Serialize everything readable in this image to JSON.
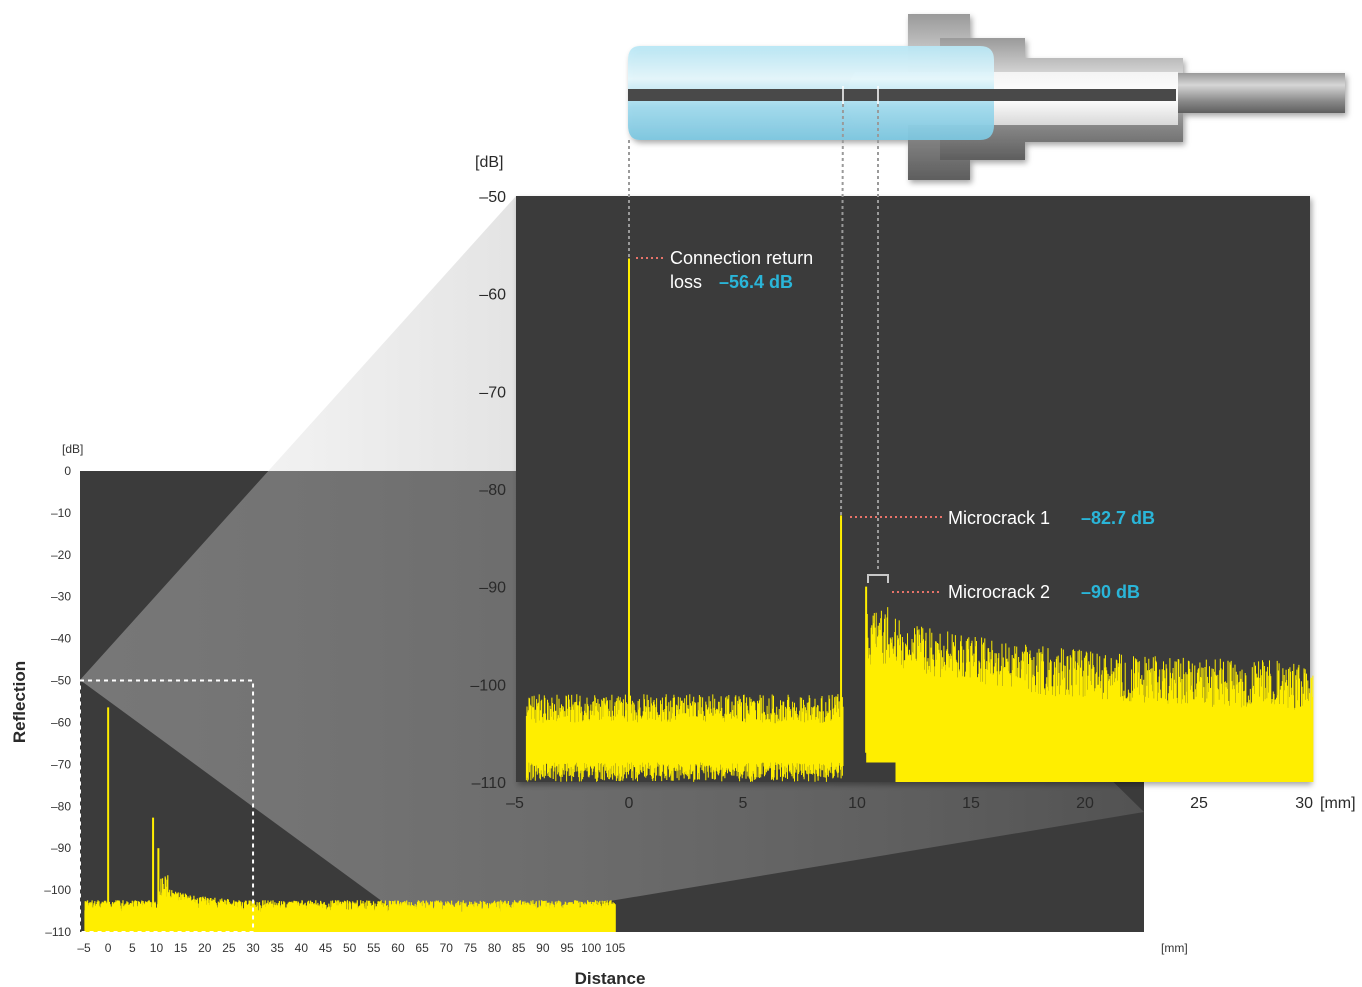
{
  "chart_data": [
    {
      "type": "line",
      "panel": "overview",
      "xlabel": "Distance",
      "ylabel": "Reflection",
      "x_unit": "[mm]",
      "y_unit": "[dB]",
      "xlim": [
        -5,
        105
      ],
      "ylim": [
        -110,
        0
      ],
      "x_ticks": [
        -5,
        0,
        5,
        10,
        15,
        20,
        25,
        30,
        35,
        40,
        45,
        50,
        55,
        60,
        65,
        70,
        75,
        80,
        85,
        90,
        95,
        100,
        105
      ],
      "y_ticks": [
        0,
        -10,
        -20,
        -30,
        -40,
        -50,
        -60,
        -70,
        -80,
        -90,
        -100,
        -110
      ],
      "series": [
        {
          "color": "#ffee00",
          "noise_floor_db": -105,
          "peaks": [
            {
              "x": 0,
              "y": -56.4
            },
            {
              "x": 9.3,
              "y": -82.7
            },
            {
              "x": 10.4,
              "y": -90
            }
          ]
        }
      ],
      "zoom_region": {
        "x": [
          -5,
          30
        ],
        "y": [
          -110,
          -50
        ]
      }
    },
    {
      "type": "line",
      "panel": "zoom",
      "x_unit": "[mm]",
      "y_unit": "[dB]",
      "xlim": [
        -5,
        30
      ],
      "ylim": [
        -110,
        -50
      ],
      "x_ticks": [
        -5,
        0,
        5,
        10,
        15,
        20,
        25,
        30
      ],
      "y_ticks": [
        -50,
        -60,
        -70,
        -80,
        -90,
        -100,
        -110
      ],
      "series": [
        {
          "color": "#ffee00",
          "noise_floor_db": -105,
          "peaks": [
            {
              "x": 0,
              "y": -56.4
            },
            {
              "x": 9.3,
              "y": -82.7
            },
            {
              "x": 10.4,
              "y": -90
            }
          ]
        }
      ],
      "annotations": [
        {
          "label_line1": "Connection return",
          "label_line2": "loss",
          "value": "–56.4 dB",
          "x": 0,
          "y": -56.4
        },
        {
          "label": "Microcrack 1",
          "value": "–82.7 dB",
          "x": 9.3,
          "y": -82.7
        },
        {
          "label": "Microcrack 2",
          "value": "–90 dB",
          "x": 10.4,
          "y": -90
        }
      ]
    }
  ],
  "colors": {
    "plot_bg": "#3b3b3b",
    "trace": "#ffee00",
    "leader_line": "#e8746a",
    "value_text": "#2ab5d8",
    "guide_line": "#9a9a9a"
  }
}
